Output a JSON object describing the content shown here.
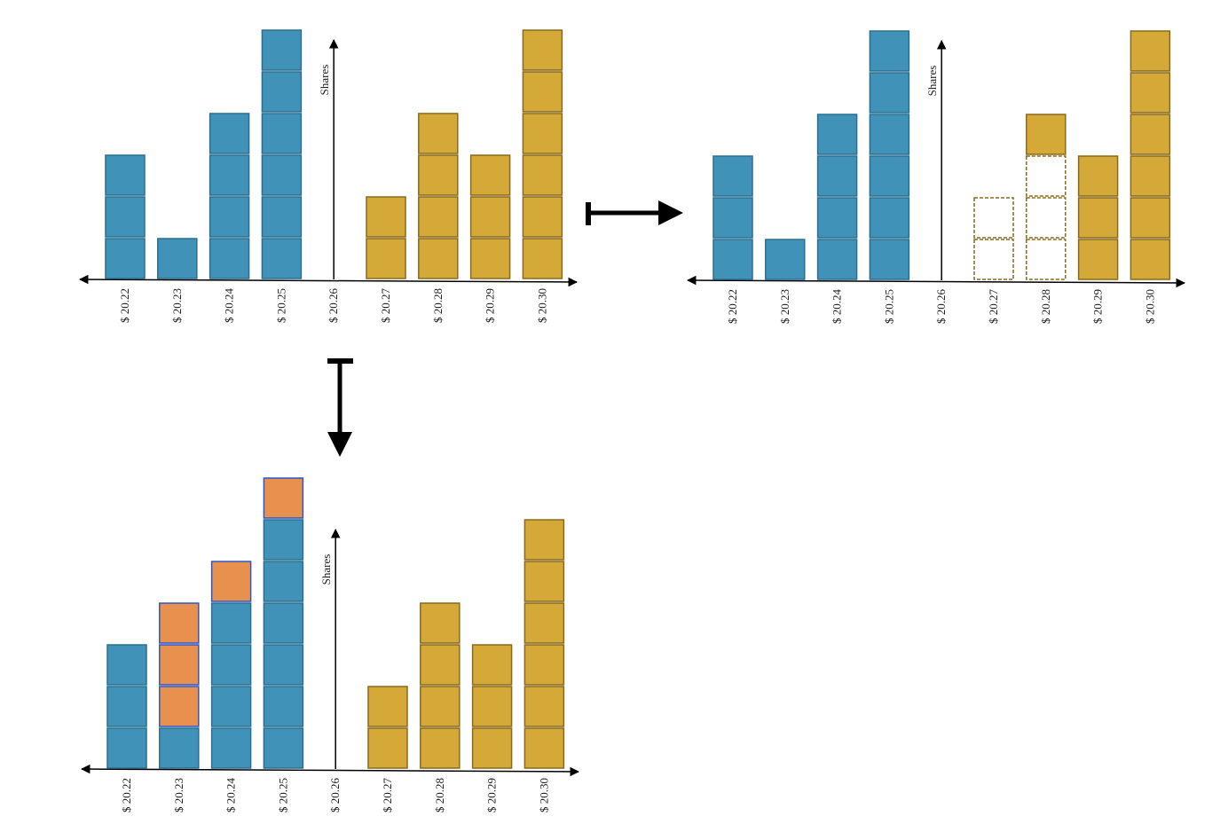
{
  "colors": {
    "bid": "#4192b8",
    "bid_border": "#2a6f8f",
    "ask": "#d4a937",
    "ask_border": "#8a6a1e",
    "new_bid": "#e8914e",
    "new_bid_border": "#2f55c8",
    "removed_border": "#8a6a1e"
  },
  "axis_label": "Shares",
  "prices": [
    "$ 20.22",
    "$ 20.23",
    "$ 20.24",
    "$ 20.25",
    "$ 20.26",
    "$ 20.27",
    "$ 20.28",
    "$ 20.29",
    "$ 20.30"
  ],
  "panels": [
    {
      "name": "initial-order-book",
      "levels": [
        {
          "bid": 3
        },
        {
          "bid": 1
        },
        {
          "bid": 4
        },
        {
          "bid": 6
        },
        {},
        {
          "ask": 2
        },
        {
          "ask": 4
        },
        {
          "ask": 3
        },
        {
          "ask": 6
        }
      ]
    },
    {
      "name": "after-market-buy",
      "levels": [
        {
          "bid": 3
        },
        {
          "bid": 1
        },
        {
          "bid": 4
        },
        {
          "bid": 6
        },
        {},
        {
          "removed": 2
        },
        {
          "removed": 3,
          "ask": 1
        },
        {
          "ask": 3
        },
        {
          "ask": 6
        }
      ]
    },
    {
      "name": "after-new-bids",
      "levels": [
        {
          "bid": 3
        },
        {
          "bid": 1,
          "new_bid": 3
        },
        {
          "bid": 4,
          "new_bid": 1
        },
        {
          "bid": 6,
          "new_bid": 1
        },
        {},
        {
          "ask": 2
        },
        {
          "ask": 4
        },
        {
          "ask": 3
        },
        {
          "ask": 6
        }
      ]
    }
  ],
  "arrows": [
    {
      "name": "transition-arrow-right",
      "from": "initial-order-book",
      "to": "after-market-buy"
    },
    {
      "name": "transition-arrow-down",
      "from": "initial-order-book",
      "to": "after-new-bids"
    }
  ]
}
